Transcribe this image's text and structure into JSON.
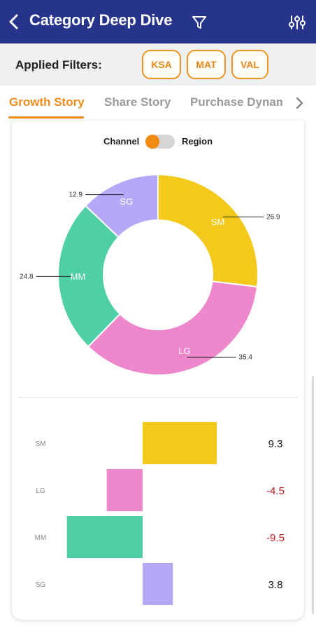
{
  "header": {
    "title": "Category Deep Dive",
    "back_icon": "chevron-left-icon",
    "filter_icon": "funnel-icon",
    "settings_icon": "sliders-icon",
    "background": "#27348b"
  },
  "filters": {
    "label": "Applied Filters:",
    "chips": [
      "KSA",
      "MAT",
      "VAL"
    ],
    "accent": "#f0921e"
  },
  "tabs": {
    "items": [
      "Growth Story",
      "Share Story",
      "Purchase Dynamics"
    ],
    "active_index": 0,
    "next_icon": "chevron-right-icon"
  },
  "toggle": {
    "left_label": "Channel",
    "right_label": "Region",
    "selected": "Channel"
  },
  "chart_data": [
    {
      "type": "pie",
      "variant": "donut",
      "categories": [
        "SM",
        "LG",
        "MM",
        "SG"
      ],
      "values": [
        26.9,
        35.4,
        24.8,
        12.9
      ],
      "colors": [
        "#f3c91c",
        "#ee87cc",
        "#4ecfa6",
        "#b6a7f7"
      ],
      "start": "top, clockwise"
    },
    {
      "type": "bar",
      "orientation": "horizontal",
      "diverging": true,
      "categories": [
        "SM",
        "LG",
        "MM",
        "SG"
      ],
      "values": [
        9.3,
        -4.5,
        -9.5,
        3.8
      ],
      "value_labels": [
        "9.3",
        "-4.5",
        "-9.5",
        "3.8"
      ],
      "colors": [
        "#f3c91c",
        "#ee87cc",
        "#4ecfa6",
        "#b6a7f7"
      ],
      "positive_label_color": "#111111",
      "negative_label_color": "#c0171e"
    }
  ]
}
